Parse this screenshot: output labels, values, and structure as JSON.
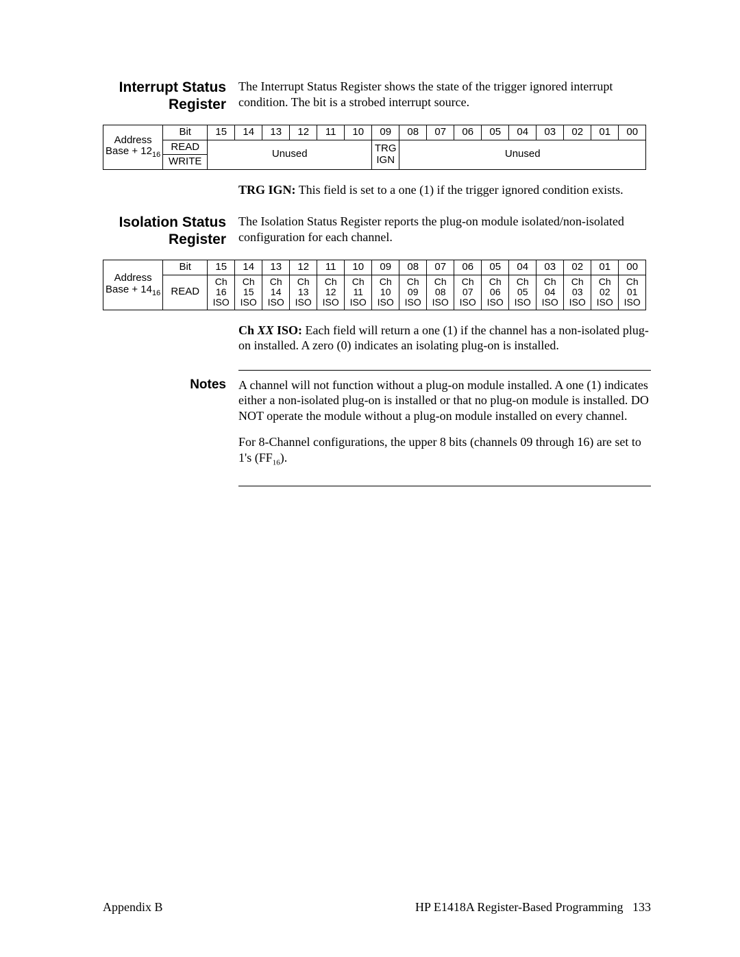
{
  "section1": {
    "title": "Interrupt Status Register",
    "body": "The Interrupt Status Register shows the state of the trigger ignored interrupt condition.  The bit is a strobed interrupt source."
  },
  "table1": {
    "addr_line1": "Address",
    "addr_line2_prefix": "Base + 12",
    "addr_line2_sub": "16",
    "bit_label": "Bit",
    "bits": [
      "15",
      "14",
      "13",
      "12",
      "11",
      "10",
      "09",
      "08",
      "07",
      "06",
      "05",
      "04",
      "03",
      "02",
      "01",
      "00"
    ],
    "read_label": "READ",
    "write_label": "WRITE",
    "unused_left": "Unused",
    "trg_ign": "TRG IGN",
    "unused_right": "Unused"
  },
  "trg_desc": {
    "bold": "TRG IGN:",
    "rest": " This field is set to a one (1) if the trigger ignored condition exists."
  },
  "section2": {
    "title": "Isolation Status Register",
    "body": "The Isolation Status Register reports the plug-on module isolated/non-isolated configuration for each channel."
  },
  "table2": {
    "addr_line1": "Address",
    "addr_line2_prefix": "Base + 14",
    "addr_line2_sub": "16",
    "bit_label": "Bit",
    "bits": [
      "15",
      "14",
      "13",
      "12",
      "11",
      "10",
      "09",
      "08",
      "07",
      "06",
      "05",
      "04",
      "03",
      "02",
      "01",
      "00"
    ],
    "read_label": "READ",
    "channels": [
      "16",
      "15",
      "14",
      "13",
      "12",
      "11",
      "10",
      "09",
      "08",
      "07",
      "06",
      "05",
      "04",
      "03",
      "02",
      "01"
    ],
    "ch_prefix": "Ch",
    "iso_suffix": "ISO"
  },
  "iso_desc": {
    "bold_prefix": "Ch ",
    "bold_italic": "XX",
    "bold_suffix": " ISO:",
    "rest": " Each field will return a one (1) if the channel has a non-isolated plug-on installed.  A zero (0) indicates an isolating plug-on is installed."
  },
  "notes": {
    "label": "Notes",
    "p1": "A channel will not function without a plug-on module installed.  A one (1) indicates either a non-isolated plug-on is installed or that no plug-on module is installed.  DO NOT operate the module without a plug-on module installed on every channel.",
    "p2_prefix": "For 8-Channel configurations, the upper 8 bits (channels 09 through 16) are set to 1's (FF",
    "p2_sub": "16",
    "p2_suffix": ")."
  },
  "footer": {
    "left": "Appendix  B",
    "right_text": "HP E1418A Register-Based Programming",
    "page": "133"
  }
}
